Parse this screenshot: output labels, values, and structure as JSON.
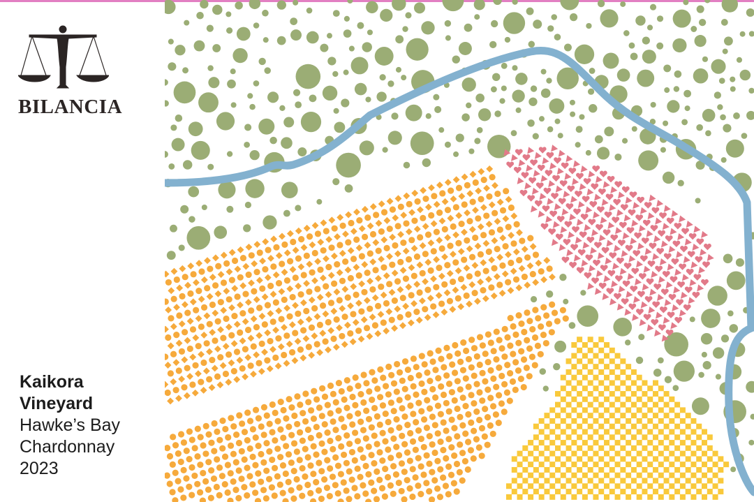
{
  "brand": {
    "name": "BILANCIA",
    "logo_icon": "balance-scale-figure-icon"
  },
  "label": {
    "line1": "Kaikora",
    "line2": "Vineyard",
    "line3": "Hawke’s Bay",
    "line4": "Chardonnay",
    "line5": "2023"
  },
  "colors": {
    "top_border": "#e27fc2",
    "logo": "#2b2524",
    "trees": "#9bad75",
    "river": "#83b1cf",
    "orange_block": "#f6aa3c",
    "pink_block": "#e27a89",
    "yellow_block": "#f9c93b"
  }
}
